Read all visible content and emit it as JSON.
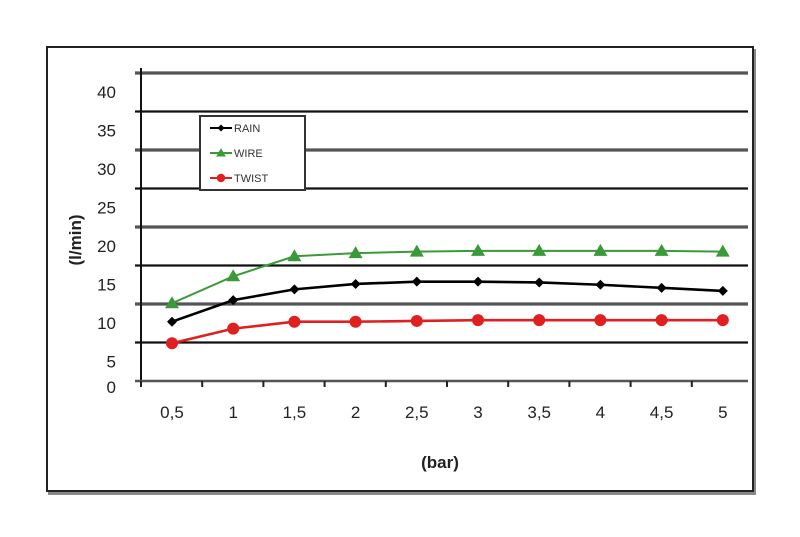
{
  "chart_data": {
    "type": "line",
    "title": "",
    "xlabel": "(bar)",
    "ylabel": "(l/min)",
    "categories": [
      "0,5",
      "1",
      "1,5",
      "2",
      "2,5",
      "3",
      "3,5",
      "4",
      "4,5",
      "5"
    ],
    "yticks": [
      "0",
      "5",
      "10",
      "15",
      "20",
      "25",
      "30",
      "35",
      "40"
    ],
    "ylim": [
      0,
      40
    ],
    "grid": true,
    "legend_position": "top-left",
    "series": [
      {
        "name": "RAIN",
        "color": "#000000",
        "marker": "diamond",
        "values": [
          7.7,
          10.5,
          11.9,
          12.6,
          12.9,
          12.9,
          12.8,
          12.5,
          12.1,
          11.7
        ]
      },
      {
        "name": "WIRE",
        "color": "#3a9a3a",
        "marker": "triangle",
        "values": [
          10.1,
          13.6,
          16.2,
          16.6,
          16.8,
          16.9,
          16.9,
          16.9,
          16.9,
          16.8
        ]
      },
      {
        "name": "TWIST",
        "color": "#e02020",
        "marker": "circle",
        "values": [
          4.9,
          6.8,
          7.7,
          7.7,
          7.8,
          7.9,
          7.9,
          7.9,
          7.9,
          7.9
        ]
      }
    ]
  }
}
